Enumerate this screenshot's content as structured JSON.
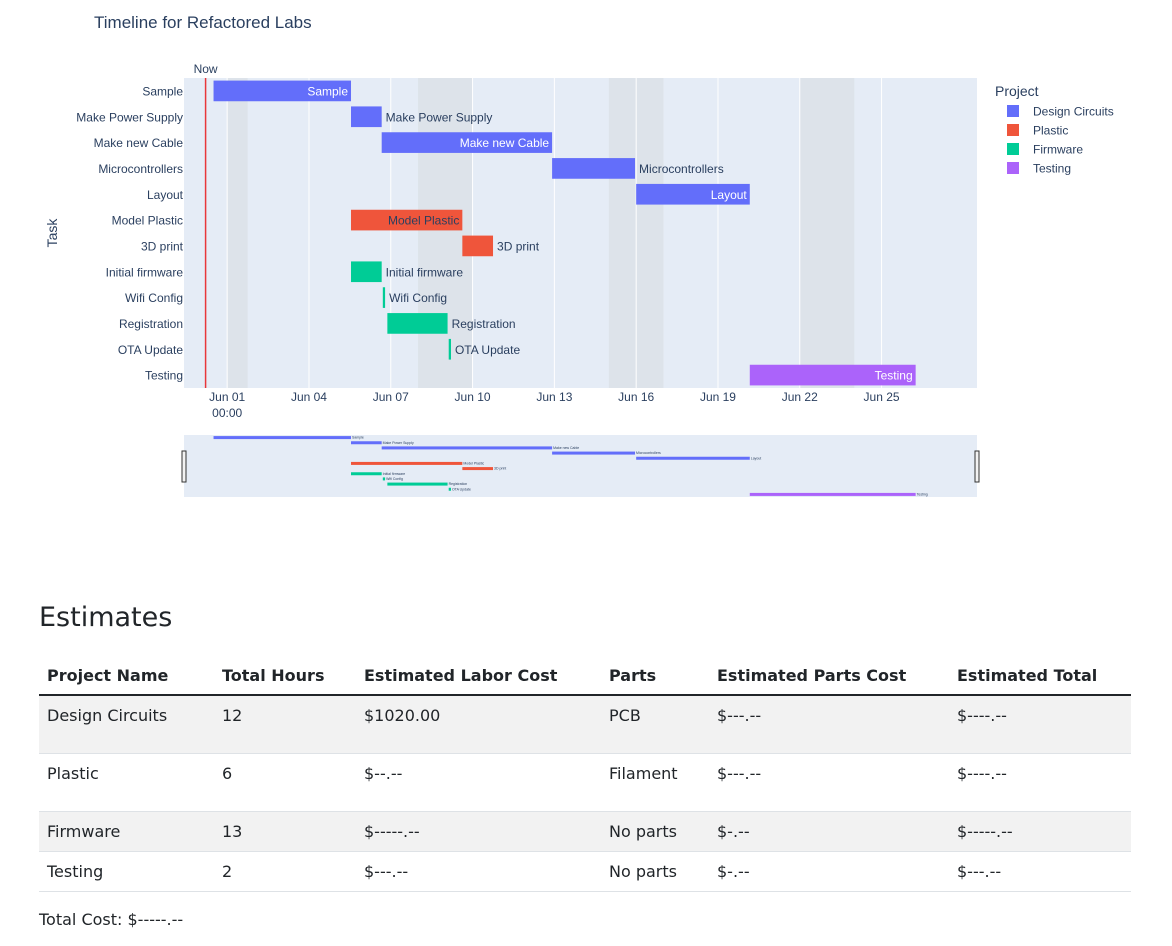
{
  "chart_data": {
    "type": "gantt",
    "title": "Timeline for Refactored Labs",
    "ylabel": "Task",
    "x_range": [
      "2023-05-30T10:00",
      "2023-06-28T12:00"
    ],
    "x_ticks": [
      {
        "date": "2023-06-01T00:00",
        "label": "Jun 01",
        "sublabel": "00:00"
      },
      {
        "date": "2023-06-04T00:00",
        "label": "Jun 04",
        "sublabel": ""
      },
      {
        "date": "2023-06-07T00:00",
        "label": "Jun 07",
        "sublabel": ""
      },
      {
        "date": "2023-06-10T00:00",
        "label": "Jun 10",
        "sublabel": ""
      },
      {
        "date": "2023-06-13T00:00",
        "label": "Jun 13",
        "sublabel": ""
      },
      {
        "date": "2023-06-16T00:00",
        "label": "Jun 16",
        "sublabel": ""
      },
      {
        "date": "2023-06-19T00:00",
        "label": "Jun 19",
        "sublabel": ""
      },
      {
        "date": "2023-06-22T00:00",
        "label": "Jun 22",
        "sublabel": ""
      },
      {
        "date": "2023-06-25T00:00",
        "label": "Jun 25",
        "sublabel": ""
      }
    ],
    "now": {
      "label": "Now",
      "date": "2023-05-31T05:00"
    },
    "weekends": [
      [
        "2023-06-01T00:00",
        "2023-06-01T18:00"
      ],
      [
        "2023-06-08T00:00",
        "2023-06-10T00:00"
      ],
      [
        "2023-06-15T00:00",
        "2023-06-17T00:00"
      ],
      [
        "2023-06-22T00:00",
        "2023-06-24T00:00"
      ]
    ],
    "legend": {
      "title": "Project",
      "position": "right"
    },
    "projects": [
      {
        "name": "Design Circuits",
        "color": "#636efa"
      },
      {
        "name": "Plastic",
        "color": "#ef553b"
      },
      {
        "name": "Firmware",
        "color": "#00cc96"
      },
      {
        "name": "Testing",
        "color": "#ab63fa"
      }
    ],
    "tasks": [
      {
        "task": "Sample",
        "project": "Design Circuits",
        "start": "2023-05-31T12:00",
        "end": "2023-06-05T13:00",
        "label_inside": true
      },
      {
        "task": "Make Power Supply",
        "project": "Design Circuits",
        "start": "2023-06-05T13:00",
        "end": "2023-06-06T16:00",
        "label_inside": false
      },
      {
        "task": "Make new Cable",
        "project": "Design Circuits",
        "start": "2023-06-06T16:00",
        "end": "2023-06-12T22:00",
        "label_inside": true
      },
      {
        "task": "Microcontrollers",
        "project": "Design Circuits",
        "start": "2023-06-12T22:00",
        "end": "2023-06-15T23:00",
        "label_inside": false
      },
      {
        "task": "Layout",
        "project": "Design Circuits",
        "start": "2023-06-16T00:00",
        "end": "2023-06-20T04:00",
        "label_inside": true
      },
      {
        "task": "Model Plastic",
        "project": "Plastic",
        "start": "2023-06-05T13:00",
        "end": "2023-06-09T15:00",
        "label_inside": true
      },
      {
        "task": "3D print",
        "project": "Plastic",
        "start": "2023-06-09T15:00",
        "end": "2023-06-10T18:00",
        "label_inside": false
      },
      {
        "task": "Initial firmware",
        "project": "Firmware",
        "start": "2023-06-05T13:00",
        "end": "2023-06-06T16:00",
        "label_inside": false
      },
      {
        "task": "Wifi Config",
        "project": "Firmware",
        "start": "2023-06-06T17:00",
        "end": "2023-06-06T19:00",
        "label_inside": false
      },
      {
        "task": "Registration",
        "project": "Firmware",
        "start": "2023-06-06T21:00",
        "end": "2023-06-09T02:00",
        "label_inside": false
      },
      {
        "task": "OTA Update",
        "project": "Firmware",
        "start": "2023-06-09T03:00",
        "end": "2023-06-09T05:00",
        "label_inside": false
      },
      {
        "task": "Testing",
        "project": "Testing",
        "start": "2023-06-20T04:00",
        "end": "2023-06-26T06:00",
        "label_inside": true
      }
    ]
  },
  "estimates": {
    "heading": "Estimates",
    "columns": [
      "Project Name",
      "Total Hours",
      "Estimated Labor Cost",
      "Parts",
      "Estimated Parts Cost",
      "Estimated Total"
    ],
    "rows": [
      [
        "Design Circuits",
        "12",
        "$1020.00",
        "PCB",
        "$---.--",
        "$----.--"
      ],
      [
        "Plastic",
        "6",
        "$--.--",
        "Filament",
        "$---.--",
        "$----.--"
      ],
      [
        "Firmware",
        "13",
        "$-----.--",
        "No parts",
        "$-.--",
        "$-----.--"
      ],
      [
        "Testing",
        "2",
        "$---.--",
        "No parts",
        "$-.--",
        "$---.--"
      ]
    ],
    "total_cost": "Total Cost: $-----.--"
  }
}
